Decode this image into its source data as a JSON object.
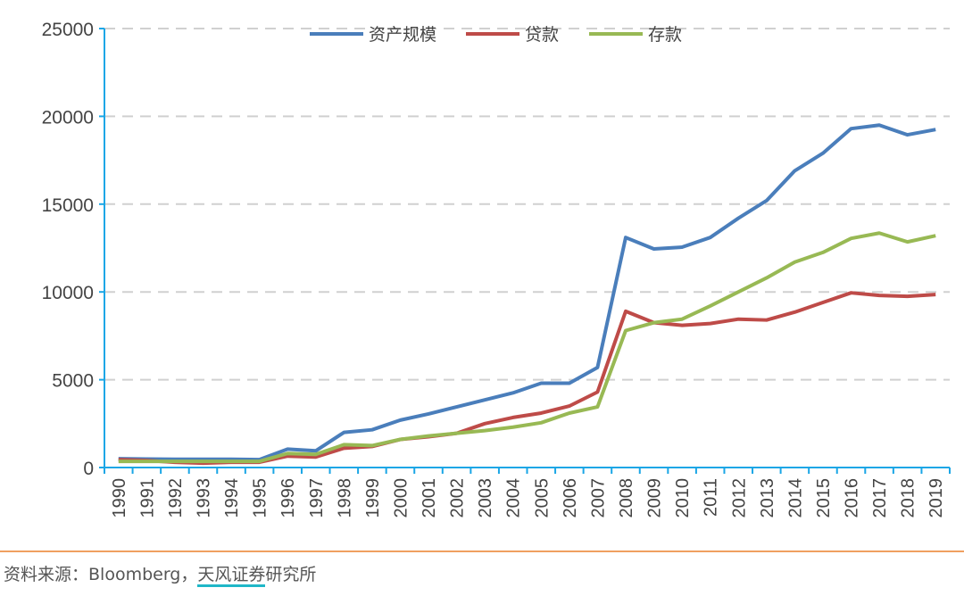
{
  "chart_data": {
    "type": "line",
    "title": "",
    "xlabel": "",
    "ylabel": "",
    "ylim": [
      0,
      25000
    ],
    "yticks": [
      0,
      5000,
      10000,
      15000,
      20000,
      25000
    ],
    "grid": true,
    "legend_position": "top-center",
    "categories": [
      "1990",
      "1991",
      "1992",
      "1993",
      "1994",
      "1995",
      "1996",
      "1997",
      "1998",
      "1999",
      "2000",
      "2001",
      "2002",
      "2003",
      "2004",
      "2005",
      "2006",
      "2007",
      "2008",
      "2009",
      "2010",
      "2011",
      "2012",
      "2013",
      "2014",
      "2015",
      "2016",
      "2017",
      "2018",
      "2019"
    ],
    "series": [
      {
        "name": "资产规模",
        "color": "#4a7ebb",
        "values": [
          500,
          480,
          470,
          470,
          470,
          450,
          1050,
          950,
          2000,
          2150,
          2700,
          3050,
          3450,
          3850,
          4250,
          4800,
          4800,
          5700,
          13100,
          12450,
          12550,
          13100,
          14200,
          15200,
          16900,
          17900,
          19300,
          19500,
          18950,
          19250
        ]
      },
      {
        "name": "贷款",
        "color": "#be4b48",
        "values": [
          450,
          400,
          300,
          250,
          300,
          300,
          650,
          600,
          1100,
          1200,
          1600,
          1750,
          1950,
          2500,
          2850,
          3100,
          3500,
          4300,
          8900,
          8250,
          8100,
          8200,
          8450,
          8400,
          8850,
          9400,
          9950,
          9800,
          9750,
          9850
        ]
      },
      {
        "name": "存款",
        "color": "#98b954",
        "values": [
          350,
          350,
          350,
          350,
          350,
          350,
          800,
          750,
          1300,
          1250,
          1600,
          1800,
          1950,
          2100,
          2300,
          2550,
          3100,
          3450,
          7800,
          8250,
          8450,
          9200,
          10000,
          10800,
          11700,
          12250,
          13050,
          13350,
          12850,
          13200
        ]
      }
    ]
  },
  "source": {
    "prefix": "资料来源：Bloomberg，",
    "highlight": "天风证券",
    "suffix": "研究所"
  },
  "colors": {
    "axis": "#1aa6e6",
    "grid": "#d0d0d0",
    "rule": "#f0a060"
  }
}
